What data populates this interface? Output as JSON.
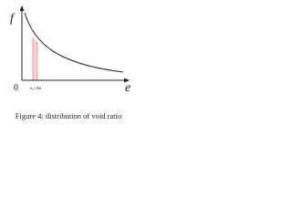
{
  "axes": {
    "y_label": "f",
    "x_label": "e",
    "origin": "0",
    "tick_label": "e₀+Δe"
  },
  "caption": "Figure 4: distribution of void ratio"
}
